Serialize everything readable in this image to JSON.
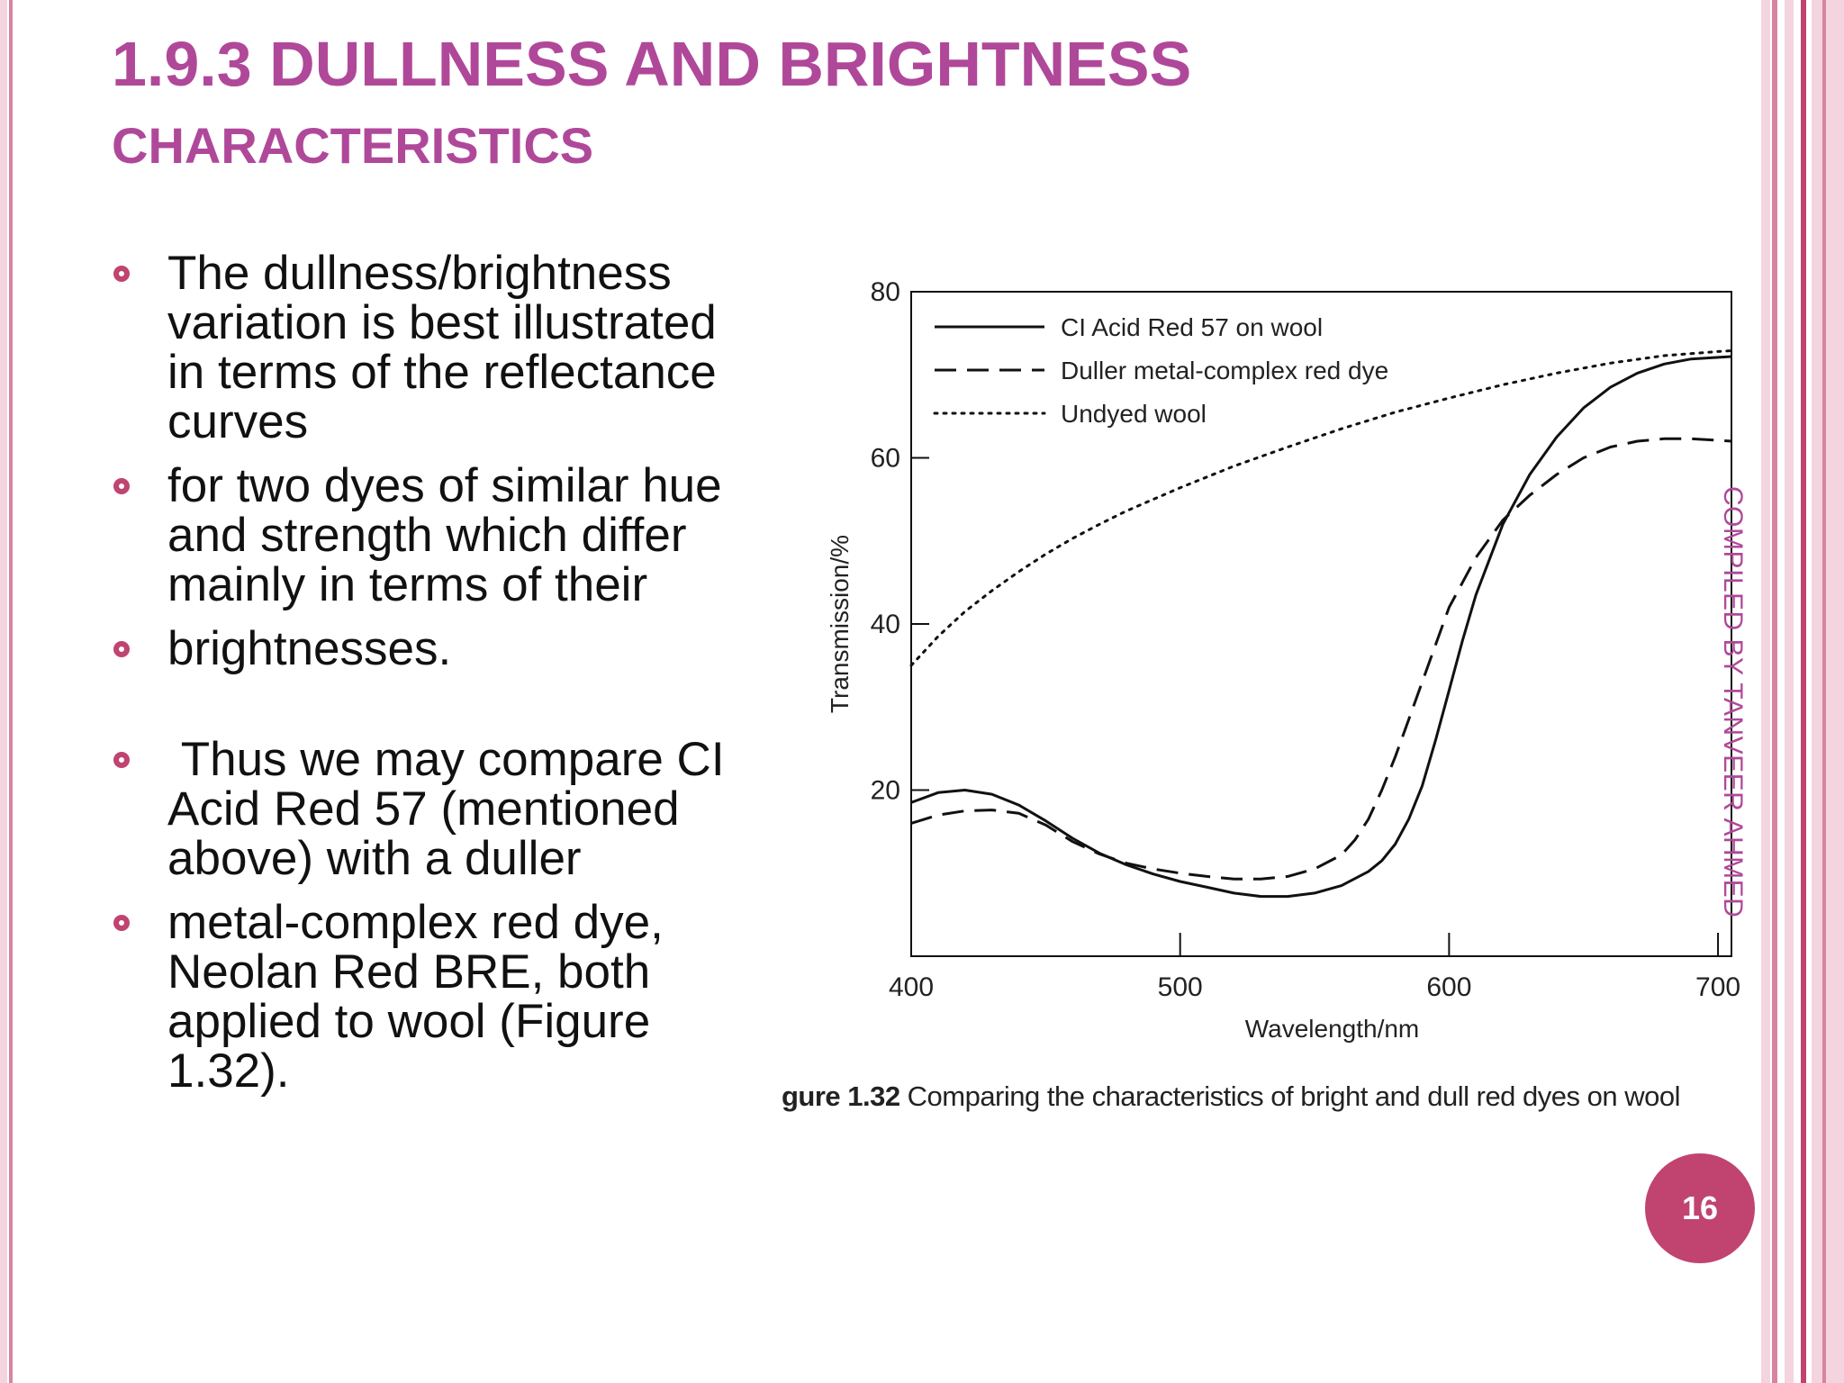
{
  "slide": {
    "title_line1": "1.9.3 DULLNESS AND BRIGHTNESS",
    "title_line2": "CHARACTERISTICS",
    "bullets": [
      "The dullness/brightness variation is best illustrated in terms of the reflectance curves",
      "for two dyes of similar hue and strength which differ mainly in terms of their",
      "brightnesses.",
      " Thus we may compare CI Acid Red 57 (mentioned above) with a duller",
      "metal-complex red dye, Neolan Red BRE, both applied to wool (Figure 1.32)."
    ],
    "caption_number": "ɡure 1.32",
    "caption_text": "Comparing the characteristics of bright and dull red dyes on wool",
    "vertical_text": "COMPILED BY TANVEER AHMED",
    "page_number": "16"
  },
  "colors": {
    "title": "#b0489a",
    "bullet_marker": "#c0446f",
    "badge": "#c0446f",
    "vertical_text": "#b0489a",
    "stripe_light": "#f3d4df",
    "stripe_mid": "#d9849e",
    "stripe_dark": "#c0446f"
  },
  "chart_data": {
    "type": "line",
    "xlabel": "Wavelength/nm",
    "ylabel": "Transmission/%",
    "xlim": [
      400,
      705
    ],
    "ylim": [
      0,
      80
    ],
    "xticks": [
      400,
      500,
      600,
      700
    ],
    "yticks": [
      20,
      40,
      60,
      80
    ],
    "legend_position": "top-left",
    "grid": false,
    "series": [
      {
        "name": "CI  Acid Red 57 on wool",
        "style": "solid",
        "x": [
          400,
          410,
          420,
          430,
          440,
          450,
          460,
          470,
          480,
          490,
          500,
          510,
          520,
          530,
          540,
          550,
          560,
          570,
          575,
          580,
          585,
          590,
          595,
          600,
          605,
          610,
          620,
          630,
          640,
          650,
          660,
          670,
          680,
          690,
          700,
          705
        ],
        "y": [
          18.5,
          19.7,
          20,
          19.5,
          18.2,
          16.3,
          14.2,
          12.4,
          11,
          9.9,
          9,
          8.3,
          7.6,
          7.2,
          7.2,
          7.6,
          8.5,
          10.2,
          11.5,
          13.5,
          16.5,
          20.5,
          26,
          32,
          38,
          43.5,
          52,
          58,
          62.5,
          66,
          68.5,
          70.2,
          71.3,
          71.9,
          72.1,
          72.2
        ]
      },
      {
        "name": "Duller metal-complex red dye",
        "style": "dashed",
        "x": [
          400,
          410,
          420,
          430,
          440,
          450,
          460,
          470,
          480,
          490,
          500,
          510,
          520,
          530,
          540,
          550,
          560,
          565,
          570,
          575,
          580,
          585,
          590,
          595,
          600,
          610,
          620,
          630,
          640,
          650,
          660,
          670,
          680,
          690,
          700,
          705
        ],
        "y": [
          16,
          17,
          17.5,
          17.6,
          17.2,
          15.8,
          13.8,
          12.3,
          11.2,
          10.5,
          10,
          9.6,
          9.3,
          9.3,
          9.6,
          10.5,
          12.2,
          14,
          16.5,
          20,
          24,
          28.5,
          33,
          37.5,
          42,
          48,
          52.5,
          55.5,
          58,
          60,
          61.3,
          62,
          62.3,
          62.3,
          62.1,
          62
        ]
      },
      {
        "name": "Undyed wool",
        "style": "dotted",
        "x": [
          400,
          410,
          420,
          430,
          440,
          450,
          460,
          470,
          480,
          490,
          500,
          520,
          540,
          560,
          580,
          600,
          620,
          640,
          660,
          680,
          700,
          705
        ],
        "y": [
          35,
          38.5,
          41.5,
          44,
          46.3,
          48.4,
          50.3,
          52,
          53.6,
          55,
          56.4,
          59,
          61.3,
          63.5,
          65.5,
          67.2,
          68.8,
          70.2,
          71.4,
          72.3,
          72.8,
          72.9
        ]
      }
    ]
  }
}
